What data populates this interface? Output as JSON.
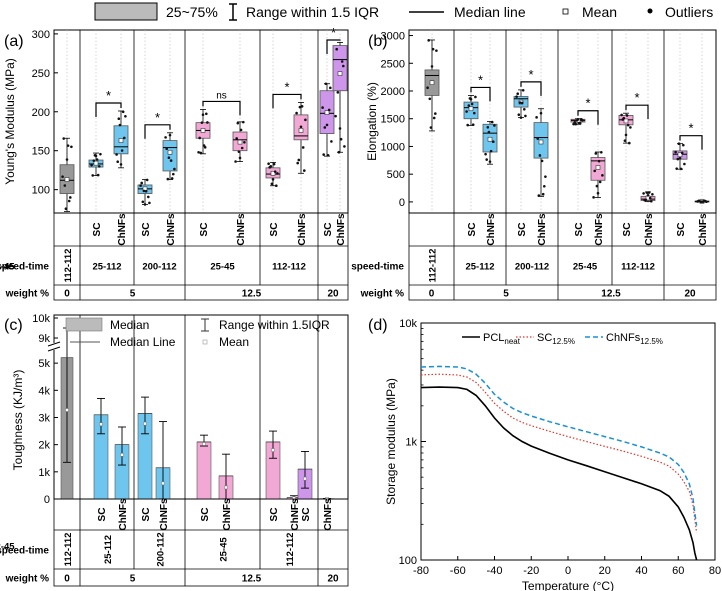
{
  "colors": {
    "control": "#999999",
    "g5": "#6ec6ee",
    "g125": "#f2a8d4",
    "g20": "#cd96ea",
    "outline": "#000000",
    "sc": "#e8332a",
    "chnfs": "#1a8fd6",
    "pcl": "#000000"
  },
  "legend_top": {
    "box_label": "25~75%",
    "range_label": "Range within 1.5 IQR",
    "median_label": "Median line",
    "mean_label": "Mean",
    "outliers_label": "Outliers"
  },
  "table": {
    "row_speed_label": "speed-time",
    "row_weight_label": "weight %",
    "sample_labels": [
      "SC",
      "ChNFs"
    ],
    "speed_times": [
      "112-112",
      "25-112",
      "200-112",
      "25-45",
      "112-112",
      "112-45"
    ],
    "weights": [
      "0",
      "5",
      "12.5",
      "20"
    ]
  },
  "chart_data": [
    {
      "panel": "(a)",
      "type": "box",
      "ylabel": "Young's Modulus (MPa)",
      "ylim": [
        70,
        305
      ],
      "yticks": [
        100,
        150,
        200,
        250,
        300
      ],
      "boxes": [
        {
          "group": "112-112",
          "sample": "",
          "q1": 95,
          "median": 112,
          "q3": 132,
          "whisker_low": 72,
          "whisker_high": 166,
          "mean": 113
        },
        {
          "group": "25-112",
          "sample": "SC",
          "q1": 129,
          "median": 133,
          "q3": 138,
          "whisker_low": 118,
          "whisker_high": 147,
          "mean": 134
        },
        {
          "group": "25-112",
          "sample": "ChNFs",
          "q1": 146,
          "median": 155,
          "q3": 182,
          "whisker_low": 128,
          "whisker_high": 201,
          "mean": 163
        },
        {
          "group": "200-112",
          "sample": "SC",
          "q1": 95,
          "median": 101,
          "q3": 106,
          "whisker_low": 81,
          "whisker_high": 113,
          "mean": 101
        },
        {
          "group": "200-112",
          "sample": "ChNFs",
          "q1": 124,
          "median": 154,
          "q3": 163,
          "whisker_low": 113,
          "whisker_high": 173,
          "mean": 148
        },
        {
          "group": "25-45",
          "sample": "SC",
          "q1": 166,
          "median": 176,
          "q3": 186,
          "whisker_low": 146,
          "whisker_high": 203,
          "mean": 176
        },
        {
          "group": "25-45",
          "sample": "ChNFs",
          "q1": 150,
          "median": 164,
          "q3": 174,
          "whisker_low": 136,
          "whisker_high": 187,
          "mean": 161
        },
        {
          "group": "112-112",
          "sample": "SC",
          "q1": 115,
          "median": 120,
          "q3": 128,
          "whisker_low": 105,
          "whisker_high": 135,
          "mean": 121
        },
        {
          "group": "112-112",
          "sample": "ChNFs",
          "q1": 164,
          "median": 169,
          "q3": 196,
          "whisker_low": 121,
          "whisker_high": 212,
          "mean": 176
        },
        {
          "group": "112-45",
          "sample": "SC",
          "q1": 172,
          "median": 198,
          "q3": 227,
          "whisker_low": 143,
          "whisker_high": 236,
          "mean": 199
        },
        {
          "group": "112-45",
          "sample": "ChNFs",
          "q1": 227,
          "median": 267,
          "q3": 285,
          "whisker_low": 148,
          "whisker_high": 289,
          "mean": 249
        }
      ],
      "significance": [
        "*",
        "*",
        "ns",
        "*",
        "*"
      ]
    },
    {
      "panel": "(b)",
      "type": "box",
      "ylabel": "Elongation (%)",
      "ylim": [
        -200,
        3100
      ],
      "yticks": [
        0,
        500,
        1000,
        1500,
        2000,
        2500,
        3000
      ],
      "boxes": [
        {
          "group": "112-112",
          "sample": "",
          "q1": 1920,
          "median": 2280,
          "q3": 2380,
          "whisker_low": 1280,
          "whisker_high": 2920,
          "mean": 2150
        },
        {
          "group": "25-112",
          "sample": "SC",
          "q1": 1500,
          "median": 1700,
          "q3": 1800,
          "whisker_low": 1380,
          "whisker_high": 1920,
          "mean": 1680
        },
        {
          "group": "25-112",
          "sample": "ChNFs",
          "q1": 900,
          "median": 1240,
          "q3": 1400,
          "whisker_low": 680,
          "whisker_high": 1450,
          "mean": 1130
        },
        {
          "group": "200-112",
          "sample": "SC",
          "q1": 1710,
          "median": 1860,
          "q3": 1900,
          "whisker_low": 1520,
          "whisker_high": 2020,
          "mean": 1800
        },
        {
          "group": "200-112",
          "sample": "ChNFs",
          "q1": 790,
          "median": 1160,
          "q3": 1430,
          "whisker_low": 100,
          "whisker_high": 1680,
          "mean": 1080
        },
        {
          "group": "25-45",
          "sample": "SC",
          "q1": 1440,
          "median": 1470,
          "q3": 1490,
          "whisker_low": 1400,
          "whisker_high": 1500,
          "mean": 1470
        },
        {
          "group": "25-45",
          "sample": "ChNFs",
          "q1": 390,
          "median": 740,
          "q3": 800,
          "whisker_low": 80,
          "whisker_high": 900,
          "mean": 620
        },
        {
          "group": "112-112",
          "sample": "SC",
          "q1": 1390,
          "median": 1480,
          "q3": 1560,
          "whisker_low": 1060,
          "whisker_high": 1600,
          "mean": 1460
        },
        {
          "group": "112-112",
          "sample": "ChNFs",
          "q1": 25,
          "median": 50,
          "q3": 100,
          "whisker_low": 5,
          "whisker_high": 180,
          "mean": 70
        },
        {
          "group": "112-45",
          "sample": "SC",
          "q1": 770,
          "median": 860,
          "q3": 920,
          "whisker_low": 590,
          "whisker_high": 1050,
          "mean": 850
        },
        {
          "group": "112-45",
          "sample": "ChNFs",
          "q1": 5,
          "median": 10,
          "q3": 15,
          "whisker_low": 2,
          "whisker_high": 20,
          "mean": 10
        }
      ],
      "significance": [
        "*",
        "*",
        "*",
        "*",
        "*"
      ]
    },
    {
      "panel": "(c)",
      "type": "bar",
      "ylabel": "Toughness (KJ/m³)",
      "yticks_lower": [
        "0",
        "1k",
        "2k",
        "3k",
        "4k",
        "5k"
      ],
      "yticks_upper": [
        "9k",
        "10k"
      ],
      "legend": {
        "median": "Median",
        "range": "Range within 1.5IQR",
        "median_line": "Median Line",
        "mean": "Mean"
      },
      "bars": [
        {
          "group": "112-112",
          "sample": "",
          "value": 5200,
          "err_low": 1350,
          "err_high": 9500
        },
        {
          "group": "25-112",
          "sample": "SC",
          "value": 3100,
          "err_low": 2400,
          "err_high": 3700
        },
        {
          "group": "25-112",
          "sample": "ChNFs",
          "value": 2000,
          "err_low": 1250,
          "err_high": 2650
        },
        {
          "group": "200-112",
          "sample": "SC",
          "value": 3150,
          "err_low": 2400,
          "err_high": 3750
        },
        {
          "group": "200-112",
          "sample": "ChNFs",
          "value": 1150,
          "err_low": 0,
          "err_high": 2850
        },
        {
          "group": "25-45",
          "sample": "SC",
          "value": 2100,
          "err_low": 1950,
          "err_high": 2350
        },
        {
          "group": "25-45",
          "sample": "ChNFs",
          "value": 850,
          "err_low": 0,
          "err_high": 1650
        },
        {
          "group": "112-112",
          "sample": "SC",
          "value": 2100,
          "err_low": 1500,
          "err_high": 2500
        },
        {
          "group": "112-112",
          "sample": "ChNFs",
          "value": 50,
          "err_low": 0,
          "err_high": 120
        },
        {
          "group": "112-45",
          "sample": "SC",
          "value": 1100,
          "err_low": 400,
          "err_high": 1750
        },
        {
          "group": "112-45",
          "sample": "ChNFs",
          "value": 10,
          "err_low": 0,
          "err_high": 20
        }
      ]
    },
    {
      "panel": "(d)",
      "type": "line",
      "xlabel": "Temperature (°C)",
      "ylabel": "Storage modulus (MPa)",
      "xlim": [
        -80,
        80
      ],
      "xticks": [
        -80,
        -60,
        -40,
        -20,
        0,
        20,
        40,
        60,
        80
      ],
      "yscale": "log",
      "ylim": [
        100,
        10000
      ],
      "ytick_labels": [
        "100",
        "1k",
        "10k"
      ],
      "series": [
        {
          "name_main": "PCL",
          "name_sub": "neat",
          "style": "solid",
          "x": [
            -80,
            -70,
            -60,
            -55,
            -50,
            -45,
            -40,
            -35,
            -30,
            -25,
            -20,
            -10,
            0,
            10,
            20,
            30,
            40,
            50,
            55,
            60,
            63,
            66,
            68,
            69,
            70
          ],
          "y": [
            2850,
            2880,
            2850,
            2750,
            2450,
            2000,
            1580,
            1300,
            1120,
            1000,
            915,
            795,
            700,
            625,
            555,
            495,
            440,
            385,
            345,
            280,
            230,
            180,
            140,
            115,
            100
          ]
        },
        {
          "name_main": "SC",
          "name_sub": "12.5%",
          "style": "dotted",
          "x": [
            -80,
            -70,
            -60,
            -55,
            -50,
            -45,
            -40,
            -35,
            -30,
            -25,
            -20,
            -10,
            0,
            10,
            20,
            30,
            40,
            50,
            55,
            60,
            63,
            66,
            68,
            69,
            70
          ],
          "y": [
            3650,
            3700,
            3640,
            3500,
            3150,
            2600,
            2100,
            1800,
            1580,
            1450,
            1360,
            1220,
            1100,
            1000,
            910,
            830,
            750,
            670,
            620,
            530,
            460,
            380,
            290,
            220,
            170
          ]
        },
        {
          "name_main": "ChNFs",
          "name_sub": "12.5%",
          "style": "dashed",
          "x": [
            -80,
            -70,
            -60,
            -55,
            -50,
            -45,
            -40,
            -35,
            -30,
            -25,
            -20,
            -10,
            0,
            10,
            20,
            30,
            40,
            50,
            55,
            60,
            63,
            66,
            68,
            69,
            70
          ],
          "y": [
            4250,
            4300,
            4250,
            4100,
            3700,
            3100,
            2500,
            2150,
            1900,
            1750,
            1640,
            1470,
            1330,
            1210,
            1100,
            1000,
            900,
            800,
            740,
            640,
            550,
            440,
            330,
            250,
            195
          ]
        }
      ]
    }
  ]
}
